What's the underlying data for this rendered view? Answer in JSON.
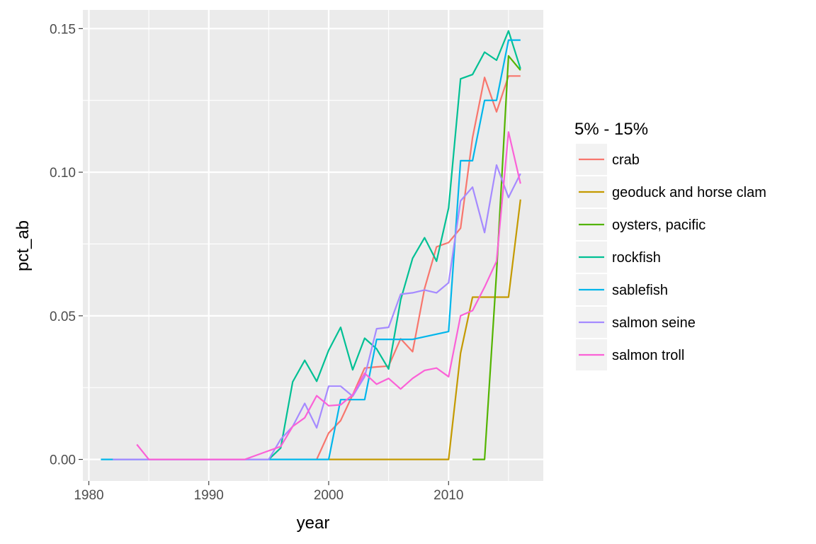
{
  "chart_data": {
    "type": "line",
    "xlabel": "year",
    "ylabel": "pct_ab",
    "xlim": [
      1979.5,
      2017.9
    ],
    "ylim": [
      -0.0075,
      0.1565
    ],
    "x_ticks": [
      1980,
      1990,
      2000,
      2010
    ],
    "y_ticks": [
      0.0,
      0.05,
      0.1,
      0.15
    ],
    "x_tick_labels": [
      "1980",
      "1990",
      "2000",
      "2010"
    ],
    "y_tick_labels": [
      "0.00",
      "0.05",
      "0.10",
      "0.15"
    ],
    "grid": true,
    "legend": {
      "title": "5% - 15%",
      "position": "right"
    },
    "series": [
      {
        "name": "crab",
        "color": "#F8766D",
        "points": [
          [
            1999,
            0.0
          ],
          [
            2000,
            0.0092
          ],
          [
            2001,
            0.0135
          ],
          [
            2002,
            0.0225
          ],
          [
            2003,
            0.0318
          ],
          [
            2004,
            0.0322
          ],
          [
            2005,
            0.0325
          ],
          [
            2006,
            0.042
          ],
          [
            2007,
            0.0375
          ],
          [
            2008,
            0.0595
          ],
          [
            2009,
            0.074
          ],
          [
            2010,
            0.0755
          ],
          [
            2011,
            0.0805
          ],
          [
            2012,
            0.112
          ],
          [
            2013,
            0.133
          ],
          [
            2014,
            0.121
          ],
          [
            2015,
            0.1335
          ],
          [
            2016,
            0.1335
          ]
        ]
      },
      {
        "name": "geoduck and horse clam",
        "color": "#C49A00",
        "points": [
          [
            2000,
            0.0
          ],
          [
            2001,
            0.0
          ],
          [
            2002,
            0.0
          ],
          [
            2003,
            0.0
          ],
          [
            2004,
            0.0
          ],
          [
            2005,
            0.0
          ],
          [
            2006,
            0.0
          ],
          [
            2007,
            0.0
          ],
          [
            2008,
            0.0
          ],
          [
            2009,
            0.0
          ],
          [
            2010,
            0.0
          ],
          [
            2011,
            0.037
          ],
          [
            2012,
            0.0565
          ],
          [
            2013,
            0.0565
          ],
          [
            2014,
            0.0565
          ],
          [
            2015,
            0.0565
          ],
          [
            2016,
            0.0905
          ]
        ]
      },
      {
        "name": "oysters, pacific",
        "color": "#53B400",
        "points": [
          [
            2012,
            0.0
          ],
          [
            2013,
            0.0
          ],
          [
            2014,
            0.065
          ],
          [
            2015,
            0.1405
          ],
          [
            2016,
            0.1355
          ]
        ]
      },
      {
        "name": "rockfish",
        "color": "#00C094",
        "points": [
          [
            1995,
            0.0
          ],
          [
            1996,
            0.004
          ],
          [
            1997,
            0.027
          ],
          [
            1998,
            0.0345
          ],
          [
            1999,
            0.0272
          ],
          [
            2000,
            0.038
          ],
          [
            2001,
            0.046
          ],
          [
            2002,
            0.0312
          ],
          [
            2003,
            0.0422
          ],
          [
            2004,
            0.0385
          ],
          [
            2005,
            0.0315
          ],
          [
            2006,
            0.0555
          ],
          [
            2007,
            0.07
          ],
          [
            2008,
            0.0772
          ],
          [
            2009,
            0.069
          ],
          [
            2010,
            0.0875
          ],
          [
            2011,
            0.1325
          ],
          [
            2012,
            0.134
          ],
          [
            2013,
            0.1418
          ],
          [
            2014,
            0.139
          ],
          [
            2015,
            0.1492
          ],
          [
            2016,
            0.136
          ]
        ]
      },
      {
        "name": "sablefish",
        "color": "#00B6EB",
        "points": [
          [
            1981,
            0.0
          ],
          [
            1982,
            0.0
          ],
          [
            1995,
            0.0
          ],
          [
            2000,
            0.0
          ],
          [
            2001,
            0.0208
          ],
          [
            2002,
            0.0208
          ],
          [
            2003,
            0.0208
          ],
          [
            2004,
            0.0418
          ],
          [
            2005,
            0.0418
          ],
          [
            2006,
            0.0418
          ],
          [
            2007,
            0.0418
          ],
          [
            2010,
            0.0445
          ],
          [
            2011,
            0.104
          ],
          [
            2012,
            0.104
          ],
          [
            2013,
            0.125
          ],
          [
            2014,
            0.125
          ],
          [
            2015,
            0.146
          ],
          [
            2016,
            0.146
          ]
        ]
      },
      {
        "name": "salmon seine",
        "color": "#A58AFF",
        "points": [
          [
            1982,
            0.0
          ],
          [
            1995,
            0.0
          ],
          [
            1996,
            0.007
          ],
          [
            1997,
            0.0115
          ],
          [
            1998,
            0.0195
          ],
          [
            1999,
            0.011
          ],
          [
            2000,
            0.0255
          ],
          [
            2001,
            0.0255
          ],
          [
            2002,
            0.022
          ],
          [
            2003,
            0.0288
          ],
          [
            2004,
            0.0455
          ],
          [
            2005,
            0.046
          ],
          [
            2006,
            0.0575
          ],
          [
            2007,
            0.058
          ],
          [
            2008,
            0.059
          ],
          [
            2009,
            0.058
          ],
          [
            2010,
            0.0615
          ],
          [
            2011,
            0.09
          ],
          [
            2012,
            0.0948
          ],
          [
            2013,
            0.079
          ],
          [
            2014,
            0.1025
          ],
          [
            2015,
            0.0912
          ],
          [
            2016,
            0.0995
          ]
        ]
      },
      {
        "name": "salmon troll",
        "color": "#FB61D7",
        "points": [
          [
            1984,
            0.0052
          ],
          [
            1985,
            0.0
          ],
          [
            1993,
            0.0
          ],
          [
            1995,
            0.003
          ],
          [
            1996,
            0.0045
          ],
          [
            1997,
            0.0115
          ],
          [
            1998,
            0.0145
          ],
          [
            1999,
            0.0222
          ],
          [
            2000,
            0.0187
          ],
          [
            2001,
            0.019
          ],
          [
            2002,
            0.0225
          ],
          [
            2003,
            0.03
          ],
          [
            2004,
            0.0262
          ],
          [
            2005,
            0.0282
          ],
          [
            2006,
            0.0245
          ],
          [
            2007,
            0.0282
          ],
          [
            2008,
            0.031
          ],
          [
            2009,
            0.0318
          ],
          [
            2010,
            0.0288
          ],
          [
            2011,
            0.05
          ],
          [
            2012,
            0.0518
          ],
          [
            2013,
            0.06
          ],
          [
            2014,
            0.069
          ],
          [
            2015,
            0.114
          ],
          [
            2016,
            0.096
          ]
        ]
      }
    ]
  }
}
